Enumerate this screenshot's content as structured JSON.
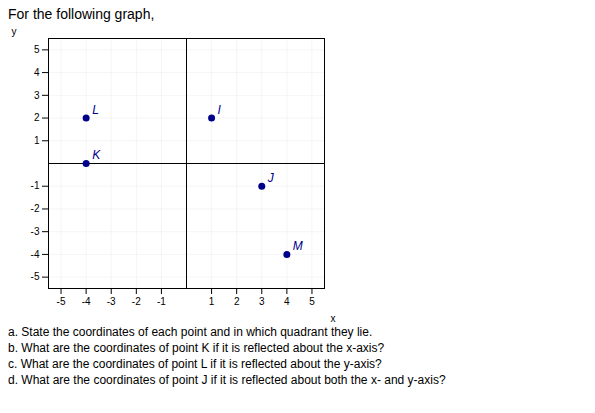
{
  "chart_data": {
    "type": "scatter",
    "title": "For the following graph,",
    "x_label": "x",
    "y_label": "y",
    "x": [
      -4,
      1,
      -4,
      3,
      4
    ],
    "values": [
      2,
      2,
      0,
      -1,
      -4
    ],
    "labels": [
      "L",
      "I",
      "K",
      "J",
      "M"
    ],
    "color": "#00008b",
    "xlim": [
      -5.5,
      5.5
    ],
    "ylim": [
      -5.5,
      5.5
    ],
    "xticks": [
      -5,
      -4,
      -3,
      -2,
      -1,
      1,
      2,
      3,
      4,
      5
    ],
    "yticks": [
      -5,
      -4,
      -3,
      -2,
      -1,
      1,
      2,
      3,
      4,
      5
    ],
    "grid": true,
    "annotations": [
      "a. State the coordinates of each point and in which quadrant they lie.",
      "b. What are the coordinates of point K if it is reflected about the x-axis?",
      "c. What are the coordinates of point L if it is reflected about the y-axis?",
      "d. What are the coordinates of point J if it is reflected about both the x- and y-axis?"
    ]
  }
}
